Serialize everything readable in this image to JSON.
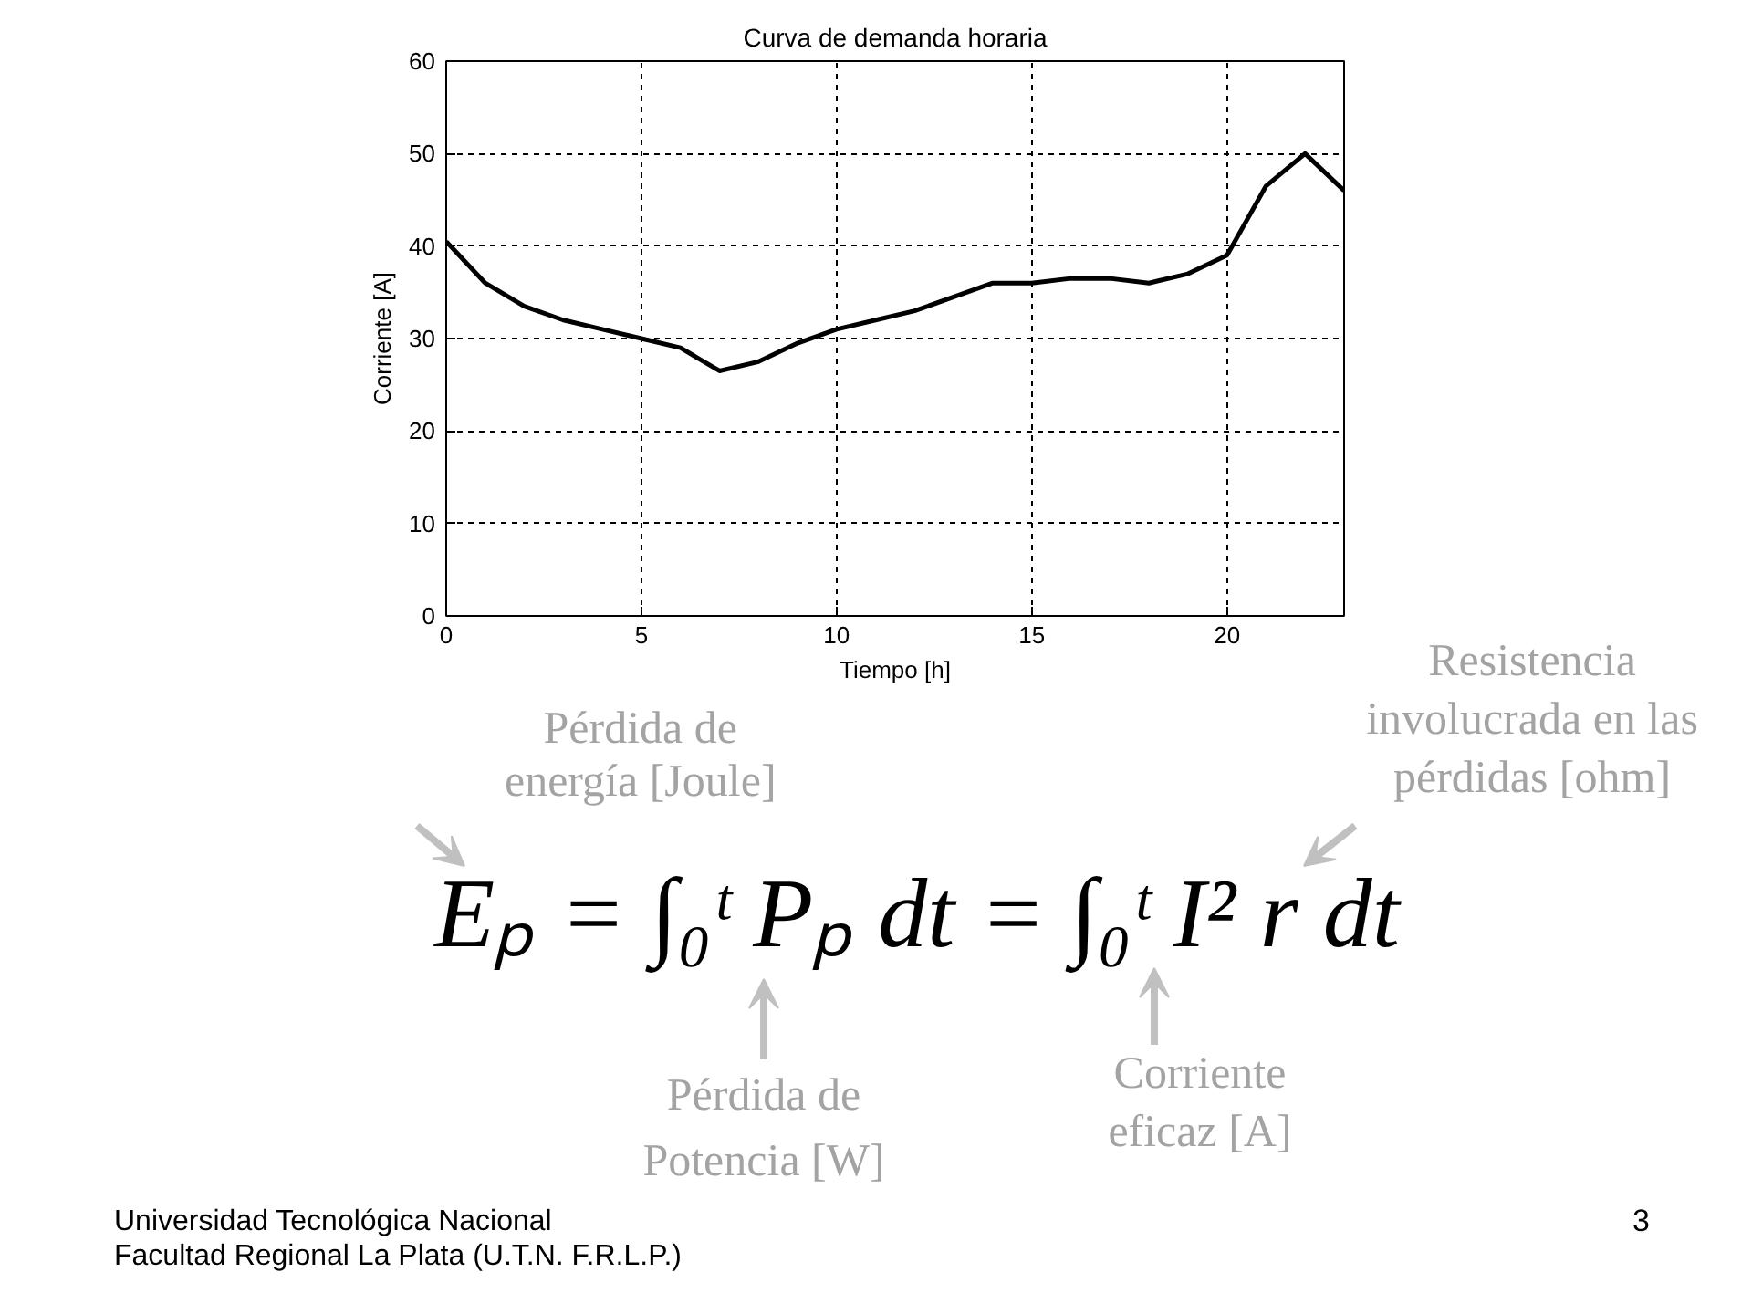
{
  "chart_data": {
    "type": "line",
    "title": "Curva de demanda horaria",
    "xlabel": "Tiempo [h]",
    "ylabel": "Corriente [A]",
    "x": [
      0,
      1,
      2,
      3,
      4,
      5,
      6,
      7,
      8,
      9,
      10,
      11,
      12,
      13,
      14,
      15,
      16,
      17,
      18,
      19,
      20,
      21,
      22,
      23
    ],
    "series": [
      {
        "color": "#000000",
        "values": [
          40.5,
          36,
          33.5,
          32,
          31,
          30,
          29,
          26.5,
          27.5,
          29.5,
          31,
          32,
          33,
          34.5,
          36,
          36,
          36.5,
          36.5,
          36,
          37,
          39,
          46.5,
          50,
          46
        ]
      }
    ],
    "xlim": [
      0,
      23
    ],
    "xticks": [
      0,
      5,
      10,
      15,
      20
    ],
    "ylim": [
      0,
      60
    ],
    "yticks": [
      0,
      10,
      20,
      30,
      40,
      50,
      60
    ],
    "grid": true,
    "line_style": "solid",
    "annotations": [
      "Pérdida de\nenergía [Joule]",
      "Resistencia\ninvolucrada en las\npérdidas [ohm]",
      "Eₚ = ∫₀ᵗ Pₚ dt = ∫₀ᵗ I² r dt",
      "Pérdida de\nPotencia [W]",
      "Corriente\neficaz [A]",
      "Universidad Tecnológica Nacional\nFacultad Regional La Plata (U.T.N. F.R.L.P.)",
      "3"
    ]
  }
}
